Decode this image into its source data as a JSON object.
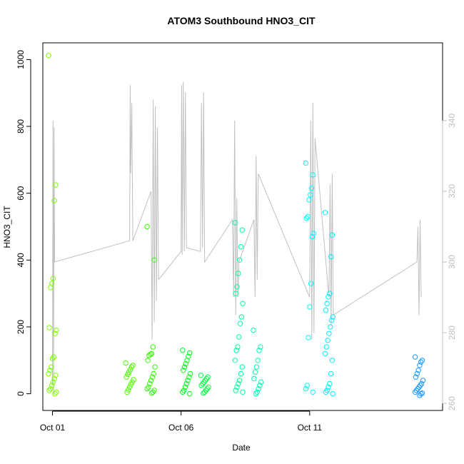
{
  "chart_data": {
    "type": "scatter",
    "title": "ATOM3 Southbound HNO3_CIT",
    "xlabel": "Date",
    "ylabel": "HNO3_CIT",
    "xlim": [
      "2017-09-30T15:00",
      "2017-10-16T04:00"
    ],
    "ylim": [
      -50,
      1050
    ],
    "x_ticks": [
      {
        "date": "2017-10-01",
        "label": "Oct 01"
      },
      {
        "date": "2017-10-06",
        "label": "Oct 06"
      },
      {
        "date": "2017-10-11",
        "label": "Oct 11"
      }
    ],
    "y_ticks": [
      0,
      200,
      400,
      600,
      800,
      1000
    ],
    "y2_ticks": [
      260,
      280,
      300,
      320,
      340
    ],
    "y2lim": [
      258,
      362
    ],
    "y2_color": "#c0c0c0",
    "grid": false,
    "series": [
      {
        "kind": "points",
        "color_scale": "date: light green → green → cyan → blue",
        "flights": [
          {
            "x": "2017-10-01T00:00",
            "color": "#7fff00",
            "points": [
              1012,
              625,
              578,
              345,
              330,
              318,
              198,
              190,
              180,
              110,
              105,
              80,
              70,
              60,
              55,
              45,
              35,
              25,
              15,
              10,
              5,
              0
            ]
          },
          {
            "x": "2017-10-04T00:00",
            "color": "#4cff00",
            "points": [
              92,
              85,
              80,
              72,
              65,
              58,
              50,
              42,
              35,
              28,
              20,
              12,
              5
            ]
          },
          {
            "x": "2017-10-04T20:00",
            "color": "#33ff00",
            "points": [
              500,
              400,
              140,
              120,
              118,
              115,
              100,
              80,
              60,
              50,
              40,
              30,
              20,
              15,
              10,
              5,
              2
            ]
          },
          {
            "x": "2017-10-06T05:00",
            "color": "#00ff1a",
            "points": [
              130,
              122,
              112,
              100,
              90,
              80,
              70,
              60,
              50,
              40,
              30,
              20,
              10,
              5,
              0
            ]
          },
          {
            "x": "2017-10-06T22:00",
            "color": "#00ff40",
            "points": [
              55,
              50,
              45,
              40,
              35,
              30,
              25,
              20,
              15,
              10,
              5,
              2
            ]
          },
          {
            "x": "2017-10-08T06:00",
            "color": "#00ff99",
            "points": [
              512,
              490,
              440,
              400,
              360,
              320,
              300,
              270,
              230,
              210,
              170,
              140,
              130,
              100,
              80,
              60,
              40,
              30,
              20,
              10,
              5
            ]
          },
          {
            "x": "2017-10-08T23:00",
            "color": "#00ffb3",
            "points": [
              190,
              140,
              130,
              100,
              80,
              65,
              45,
              35,
              25,
              15,
              5,
              0
            ]
          },
          {
            "x": "2017-10-11T00:00",
            "color": "#00ffff",
            "points": [
              690,
              655,
              615,
              595,
              580,
              530,
              525,
              480,
              470,
              330,
              260,
              168,
              25,
              15,
              5
            ]
          },
          {
            "x": "2017-10-11T18:00",
            "color": "#00f0ff",
            "points": [
              542,
              475,
              410,
              300,
              290,
              270,
              250,
              230,
              220,
              200,
              180,
              160,
              140,
              120,
              100,
              60,
              30,
              20,
              10,
              5,
              0
            ]
          },
          {
            "x": "2017-10-15T06:00",
            "color": "#1a99ff",
            "points": [
              110,
              100,
              95,
              85,
              70,
              60,
              50,
              40,
              30,
              25,
              20,
              15,
              10,
              5,
              2,
              0,
              -5
            ]
          }
        ]
      },
      {
        "kind": "line",
        "axis": "right",
        "color": "#c0c0c0",
        "path": [
          [
            "2017-10-01T00:00",
            265
          ],
          [
            "2017-10-01T00:30",
            340
          ],
          [
            "2017-10-01T01:00",
            262
          ],
          [
            "2017-10-01T01:30",
            338
          ],
          [
            "2017-10-01T02:00",
            300
          ],
          [
            "2017-10-04T00:00",
            306
          ],
          [
            "2017-10-04T00:30",
            350
          ],
          [
            "2017-10-04T01:00",
            325
          ],
          [
            "2017-10-04T02:00",
            345
          ],
          [
            "2017-10-04T03:00",
            306
          ],
          [
            "2017-10-04T20:00",
            320
          ],
          [
            "2017-10-04T21:00",
            278
          ],
          [
            "2017-10-04T22:00",
            346
          ],
          [
            "2017-10-04T23:00",
            283
          ],
          [
            "2017-10-05T00:00",
            344
          ],
          [
            "2017-10-05T01:00",
            289
          ],
          [
            "2017-10-05T02:00",
            338
          ],
          [
            "2017-10-05T03:00",
            295
          ],
          [
            "2017-10-06T00:00",
            303
          ],
          [
            "2017-10-06T00:30",
            350
          ],
          [
            "2017-10-06T01:00",
            302
          ],
          [
            "2017-10-06T02:00",
            351
          ],
          [
            "2017-10-06T03:00",
            303
          ],
          [
            "2017-10-06T04:00",
            348
          ],
          [
            "2017-10-06T05:00",
            304
          ],
          [
            "2017-10-06T18:00",
            303
          ],
          [
            "2017-10-06T19:00",
            345
          ],
          [
            "2017-10-06T20:00",
            304
          ],
          [
            "2017-10-06T21:00",
            348
          ],
          [
            "2017-10-06T22:00",
            300
          ],
          [
            "2017-10-08T00:00",
            312
          ],
          [
            "2017-10-08T01:00",
            290
          ],
          [
            "2017-10-08T02:00",
            340
          ],
          [
            "2017-10-08T03:00",
            285
          ],
          [
            "2017-10-08T04:00",
            318
          ],
          [
            "2017-10-08T05:00",
            290
          ],
          [
            "2017-10-08T06:00",
            300
          ],
          [
            "2017-10-08T20:00",
            312
          ],
          [
            "2017-10-08T21:00",
            290
          ],
          [
            "2017-10-08T22:00",
            330
          ],
          [
            "2017-10-08T23:00",
            295
          ],
          [
            "2017-10-09T00:00",
            325
          ],
          [
            "2017-10-11T00:00",
            290
          ],
          [
            "2017-10-11T01:00",
            340
          ],
          [
            "2017-10-11T02:00",
            278
          ],
          [
            "2017-10-11T03:00",
            345
          ],
          [
            "2017-10-11T04:00",
            280
          ],
          [
            "2017-10-11T05:00",
            335
          ],
          [
            "2017-10-11T18:00",
            290
          ],
          [
            "2017-10-11T19:00",
            322
          ],
          [
            "2017-10-11T20:00",
            282
          ],
          [
            "2017-10-11T21:00",
            325
          ],
          [
            "2017-10-11T22:00",
            285
          ],
          [
            "2017-10-15T04:00",
            300
          ],
          [
            "2017-10-15T05:00",
            310
          ],
          [
            "2017-10-15T06:00",
            285
          ],
          [
            "2017-10-15T07:00",
            312
          ],
          [
            "2017-10-15T08:00",
            290
          ]
        ]
      }
    ]
  }
}
